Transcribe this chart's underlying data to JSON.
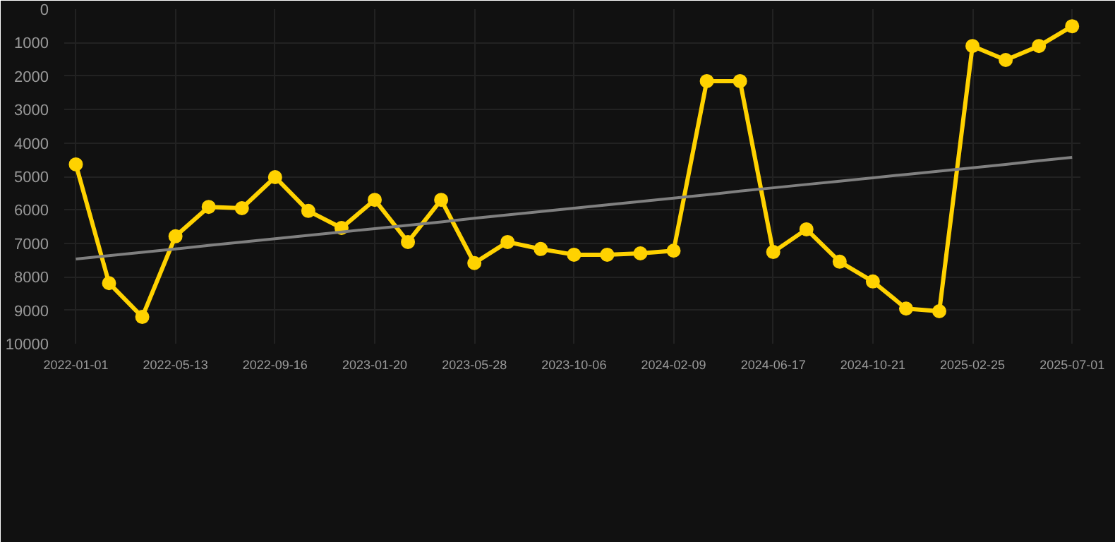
{
  "chart_data": {
    "type": "line",
    "categories": [
      "2022-01-01",
      null,
      null,
      "2022-05-13",
      null,
      null,
      "2022-09-16",
      null,
      null,
      "2023-01-20",
      null,
      null,
      "2023-05-28",
      null,
      null,
      "2023-10-06",
      null,
      null,
      "2024-02-09",
      null,
      null,
      "2024-06-17",
      null,
      null,
      "2024-10-21",
      null,
      null,
      "2025-02-25",
      null,
      null,
      "2025-07-01"
    ],
    "series": [
      {
        "color": "#ffd200",
        "marker": "circle",
        "values": [
          4640,
          8190,
          9200,
          6790,
          5910,
          5950,
          5020,
          6030,
          6540,
          5700,
          6960,
          5700,
          7590,
          6960,
          7170,
          7340,
          7340,
          7300,
          7220,
          2150,
          2150,
          7260,
          6580,
          7550,
          8140,
          8950,
          9030,
          1100,
          1520,
          1100,
          510
        ]
      },
      {
        "color": "#808080",
        "marker": "none",
        "values": [
          7470,
          7370,
          7270,
          7170,
          7060,
          6960,
          6860,
          6760,
          6660,
          6560,
          6460,
          6360,
          6250,
          6150,
          6050,
          5950,
          5850,
          5750,
          5650,
          5550,
          5440,
          5340,
          5240,
          5140,
          5040,
          4940,
          4840,
          4740,
          4640,
          4530,
          4430
        ]
      }
    ],
    "ylim": [
      10000,
      0
    ],
    "yticks": [
      0,
      1000,
      2000,
      3000,
      4000,
      5000,
      6000,
      7000,
      8000,
      9000,
      10000
    ],
    "grid": true,
    "line_style": "solid"
  }
}
